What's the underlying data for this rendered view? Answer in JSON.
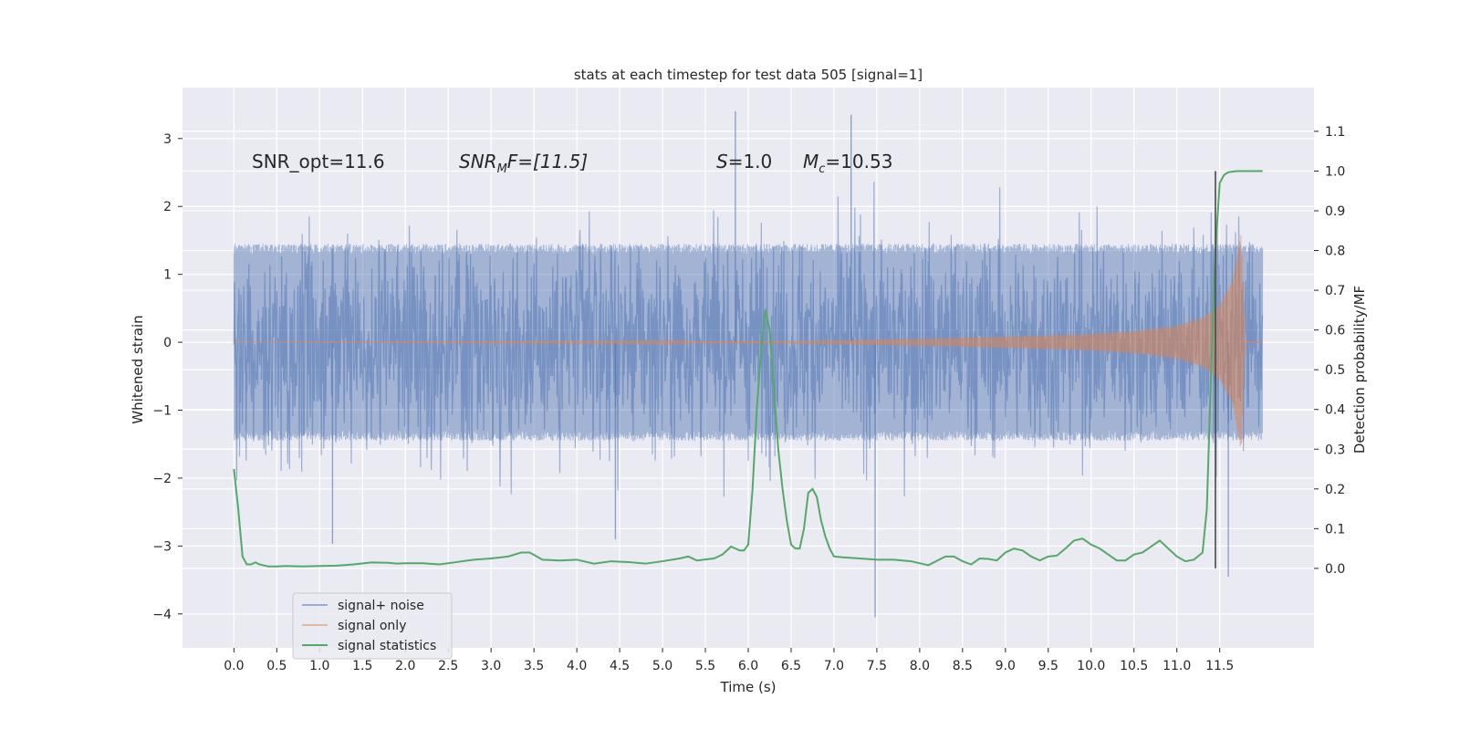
{
  "chart_data": {
    "type": "line",
    "title": "stats at each timestep for test data 505 [signal=1]",
    "xlabel": "Time (s)",
    "ylabel_left": "Whitened strain",
    "ylabel_right": "Detection probability/MF",
    "xlim": [
      -0.6,
      12.6
    ],
    "ylim_left": [
      -4.5,
      3.75
    ],
    "ylim_right": [
      -0.2,
      1.21
    ],
    "x_ticks": [
      0.0,
      0.5,
      1.0,
      1.5,
      2.0,
      2.5,
      3.0,
      3.5,
      4.0,
      4.5,
      5.0,
      5.5,
      6.0,
      6.5,
      7.0,
      7.5,
      8.0,
      8.5,
      9.0,
      9.5,
      10.0,
      10.5,
      11.0,
      11.5
    ],
    "x_tick_labels": [
      "0.0",
      "0.5",
      "1.0",
      "1.5",
      "2.0",
      "2.5",
      "3.0",
      "3.5",
      "4.0",
      "4.5",
      "5.0",
      "5.5",
      "6.0",
      "6.5",
      "7.0",
      "7.5",
      "8.0",
      "8.5",
      "9.0",
      "9.5",
      "10.0",
      "10.5",
      "11.0",
      "11.5"
    ],
    "y_left_ticks": [
      3,
      2,
      1,
      0,
      -1,
      -2,
      -3,
      -4
    ],
    "y_left_tick_labels": [
      "3",
      "2",
      "1",
      "0",
      "−1",
      "−2",
      "−3",
      "−4"
    ],
    "y_right_ticks": [
      1.1,
      1.0,
      0.9,
      0.8,
      0.7,
      0.6,
      0.5,
      0.4,
      0.3,
      0.2,
      0.1,
      0.0
    ],
    "y_right_tick_labels": [
      "1.1",
      "1.0",
      "0.9",
      "0.8",
      "0.7",
      "0.6",
      "0.5",
      "0.4",
      "0.3",
      "0.2",
      "0.1",
      "0.0"
    ],
    "grid": true,
    "legend_placement": "lower-left",
    "annotations": {
      "snr_opt": "SNR_opt=11.6",
      "snr_mf_main": "SNR",
      "snr_mf_sub": "M",
      "snr_mf_rest": "F=[11.5]",
      "s_main": "S",
      "s_rest": "=1.0",
      "mc_main": "M",
      "mc_sub": "c",
      "mc_rest": "=10.53"
    },
    "series": [
      {
        "name": "signal+ noise",
        "axis": "left",
        "color": "#4c72b0",
        "description_values": {
          "x_start": 0.0,
          "x_end": 12.0,
          "typical_min": -2.3,
          "typical_max": 2.5,
          "extremes": [
            [
              5.85,
              3.4
            ],
            [
              7.2,
              3.35
            ],
            [
              7.48,
              -4.05
            ],
            [
              11.6,
              -3.45
            ],
            [
              1.15,
              -2.97
            ],
            [
              4.45,
              -2.9
            ]
          ]
        }
      },
      {
        "name": "signal only",
        "axis": "left",
        "color": "#dd8452",
        "envelope": [
          [
            0.0,
            0.0
          ],
          [
            6.5,
            0.02
          ],
          [
            8.0,
            0.05
          ],
          [
            9.0,
            0.08
          ],
          [
            10.0,
            0.12
          ],
          [
            10.5,
            0.16
          ],
          [
            11.0,
            0.24
          ],
          [
            11.3,
            0.36
          ],
          [
            11.5,
            0.55
          ],
          [
            11.65,
            0.9
          ],
          [
            11.75,
            1.6
          ],
          [
            11.8,
            0.0
          ]
        ]
      },
      {
        "name": "signal statistics",
        "axis": "right",
        "color": "#55a868",
        "x": [
          0.0,
          0.05,
          0.1,
          0.15,
          0.2,
          0.25,
          0.3,
          0.4,
          0.5,
          0.6,
          0.8,
          1.0,
          1.2,
          1.4,
          1.6,
          1.8,
          1.9,
          2.0,
          2.2,
          2.4,
          2.6,
          2.8,
          3.0,
          3.2,
          3.35,
          3.45,
          3.6,
          3.8,
          4.0,
          4.2,
          4.4,
          4.6,
          4.8,
          5.0,
          5.2,
          5.3,
          5.4,
          5.6,
          5.7,
          5.8,
          5.85,
          5.9,
          5.95,
          6.0,
          6.05,
          6.1,
          6.15,
          6.2,
          6.25,
          6.3,
          6.35,
          6.4,
          6.45,
          6.5,
          6.55,
          6.6,
          6.65,
          6.7,
          6.75,
          6.8,
          6.85,
          6.9,
          6.95,
          7.0,
          7.1,
          7.3,
          7.5,
          7.7,
          7.9,
          8.1,
          8.3,
          8.4,
          8.5,
          8.6,
          8.7,
          8.8,
          8.9,
          9.0,
          9.1,
          9.2,
          9.3,
          9.4,
          9.5,
          9.6,
          9.7,
          9.8,
          9.9,
          10.0,
          10.1,
          10.2,
          10.3,
          10.4,
          10.5,
          10.6,
          10.7,
          10.8,
          10.9,
          11.0,
          11.1,
          11.2,
          11.3,
          11.35,
          11.4,
          11.45,
          11.5,
          11.55,
          11.6,
          11.7,
          11.8,
          11.9,
          12.0
        ],
        "y": [
          0.25,
          0.15,
          0.03,
          0.01,
          0.01,
          0.015,
          0.01,
          0.005,
          0.005,
          0.006,
          0.005,
          0.006,
          0.007,
          0.01,
          0.015,
          0.014,
          0.012,
          0.013,
          0.013,
          0.01,
          0.016,
          0.022,
          0.025,
          0.03,
          0.04,
          0.04,
          0.022,
          0.02,
          0.022,
          0.012,
          0.018,
          0.016,
          0.012,
          0.018,
          0.025,
          0.03,
          0.02,
          0.025,
          0.035,
          0.055,
          0.05,
          0.045,
          0.045,
          0.06,
          0.2,
          0.4,
          0.55,
          0.65,
          0.6,
          0.45,
          0.3,
          0.2,
          0.12,
          0.06,
          0.05,
          0.05,
          0.1,
          0.19,
          0.2,
          0.18,
          0.12,
          0.08,
          0.05,
          0.03,
          0.028,
          0.025,
          0.022,
          0.022,
          0.018,
          0.008,
          0.03,
          0.03,
          0.018,
          0.01,
          0.025,
          0.024,
          0.02,
          0.04,
          0.05,
          0.045,
          0.03,
          0.02,
          0.03,
          0.032,
          0.05,
          0.07,
          0.075,
          0.06,
          0.05,
          0.035,
          0.02,
          0.02,
          0.035,
          0.04,
          0.055,
          0.07,
          0.05,
          0.03,
          0.018,
          0.022,
          0.04,
          0.15,
          0.5,
          0.8,
          0.97,
          0.99,
          0.997,
          1.0,
          1.0,
          1.0,
          1.0
        ]
      }
    ],
    "vertical_marker": {
      "x": 11.45,
      "y_right_min": 0.0,
      "y_right_max": 1.0,
      "color": "#4a4a4a"
    }
  }
}
